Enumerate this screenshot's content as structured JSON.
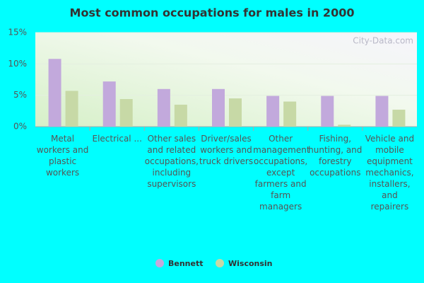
{
  "chart_data": {
    "type": "bar",
    "title": "Most common occupations for males in 2000",
    "watermark": "City-Data.com",
    "categories": [
      "Metal workers and plastic workers",
      "Electrical ...",
      "Other sales and related occupations, including supervisors",
      "Driver/sales workers and truck drivers",
      "Other management occupations, except farmers and farm managers",
      "Fishing, hunting, and forestry occupations",
      "Vehicle and mobile equipment mechanics, installers, and repairers"
    ],
    "series": [
      {
        "name": "Bennett",
        "color": "#c2a9dc",
        "values": [
          10.8,
          7.2,
          6.0,
          6.0,
          4.9,
          4.9,
          4.9
        ]
      },
      {
        "name": "Wisconsin",
        "color": "#c7d9a6",
        "values": [
          5.7,
          4.4,
          3.5,
          4.5,
          4.0,
          0.3,
          2.7
        ]
      }
    ],
    "ylim": [
      0,
      15
    ],
    "yticks": [
      {
        "value": 0,
        "label": "0%"
      },
      {
        "value": 5,
        "label": "5%"
      },
      {
        "value": 10,
        "label": "10%"
      },
      {
        "value": 15,
        "label": "15%"
      }
    ],
    "grid": true
  }
}
